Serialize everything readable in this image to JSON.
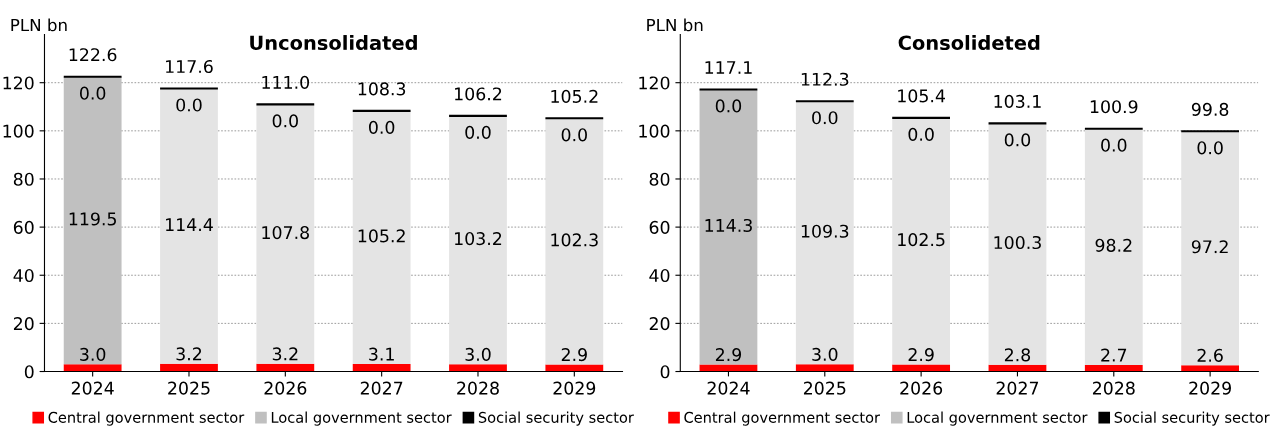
{
  "chart_data": [
    {
      "type": "bar",
      "title": "Unconsolidated",
      "ylabel": "PLN bn",
      "stacked": true,
      "legend": "bottom",
      "grid": "y",
      "categories": [
        "2024",
        "2025",
        "2026",
        "2027",
        "2028",
        "2029"
      ],
      "ylim": [
        0,
        140
      ],
      "yticks": [
        0,
        20,
        40,
        60,
        80,
        100,
        120
      ],
      "series": [
        {
          "name": "Central government sector",
          "color": "#ff0000",
          "values": [
            3.0,
            3.2,
            3.2,
            3.1,
            3.0,
            2.9
          ],
          "value_labels": [
            "3.0",
            "3.2",
            "3.2",
            "3.1",
            "3.0",
            "2.9"
          ]
        },
        {
          "name": "Local government sector",
          "color": "#c0c0c0",
          "colors": [
            "#c0c0c0",
            "#e4e4e4",
            "#e4e4e4",
            "#e4e4e4",
            "#e4e4e4",
            "#e4e4e4"
          ],
          "values": [
            119.5,
            114.4,
            107.8,
            105.2,
            103.2,
            102.3
          ],
          "value_labels": [
            "119.5",
            "114.4",
            "107.8",
            "105.2",
            "103.2",
            "102.3"
          ]
        },
        {
          "name": "Social security sector",
          "color": "#000000",
          "values": [
            0.0,
            0.0,
            0.0,
            0.0,
            0.0,
            0.0
          ],
          "value_labels": [
            "0.0",
            "0.0",
            "0.0",
            "0.0",
            "0.0",
            "0.0"
          ]
        }
      ],
      "totals": [
        "122.6",
        "117.6",
        "111.0",
        "108.3",
        "106.2",
        "105.2"
      ]
    },
    {
      "type": "bar",
      "title": "Consolideted",
      "ylabel": "PLN bn",
      "stacked": true,
      "legend": "bottom",
      "grid": "y",
      "categories": [
        "2024",
        "2025",
        "2026",
        "2027",
        "2028",
        "2029"
      ],
      "ylim": [
        0,
        140
      ],
      "yticks": [
        0,
        20,
        40,
        60,
        80,
        100,
        120
      ],
      "series": [
        {
          "name": "Central government sector",
          "color": "#ff0000",
          "values": [
            2.9,
            3.0,
            2.9,
            2.8,
            2.7,
            2.6
          ],
          "value_labels": [
            "2.9",
            "3.0",
            "2.9",
            "2.8",
            "2.7",
            "2.6"
          ]
        },
        {
          "name": "Local government sector",
          "color": "#c0c0c0",
          "colors": [
            "#c0c0c0",
            "#e4e4e4",
            "#e4e4e4",
            "#e4e4e4",
            "#e4e4e4",
            "#e4e4e4"
          ],
          "values": [
            114.3,
            109.3,
            102.5,
            100.3,
            98.2,
            97.2
          ],
          "value_labels": [
            "114.3",
            "109.3",
            "102.5",
            "100.3",
            "98.2",
            "97.2"
          ]
        },
        {
          "name": "Social security sector",
          "color": "#000000",
          "values": [
            0.0,
            0.0,
            0.0,
            0.0,
            0.0,
            0.0
          ],
          "value_labels": [
            "0.0",
            "0.0",
            "0.0",
            "0.0",
            "0.0",
            "0.0"
          ]
        }
      ],
      "totals": [
        "117.1",
        "112.3",
        "105.4",
        "103.1",
        "100.9",
        "99.8"
      ]
    }
  ]
}
